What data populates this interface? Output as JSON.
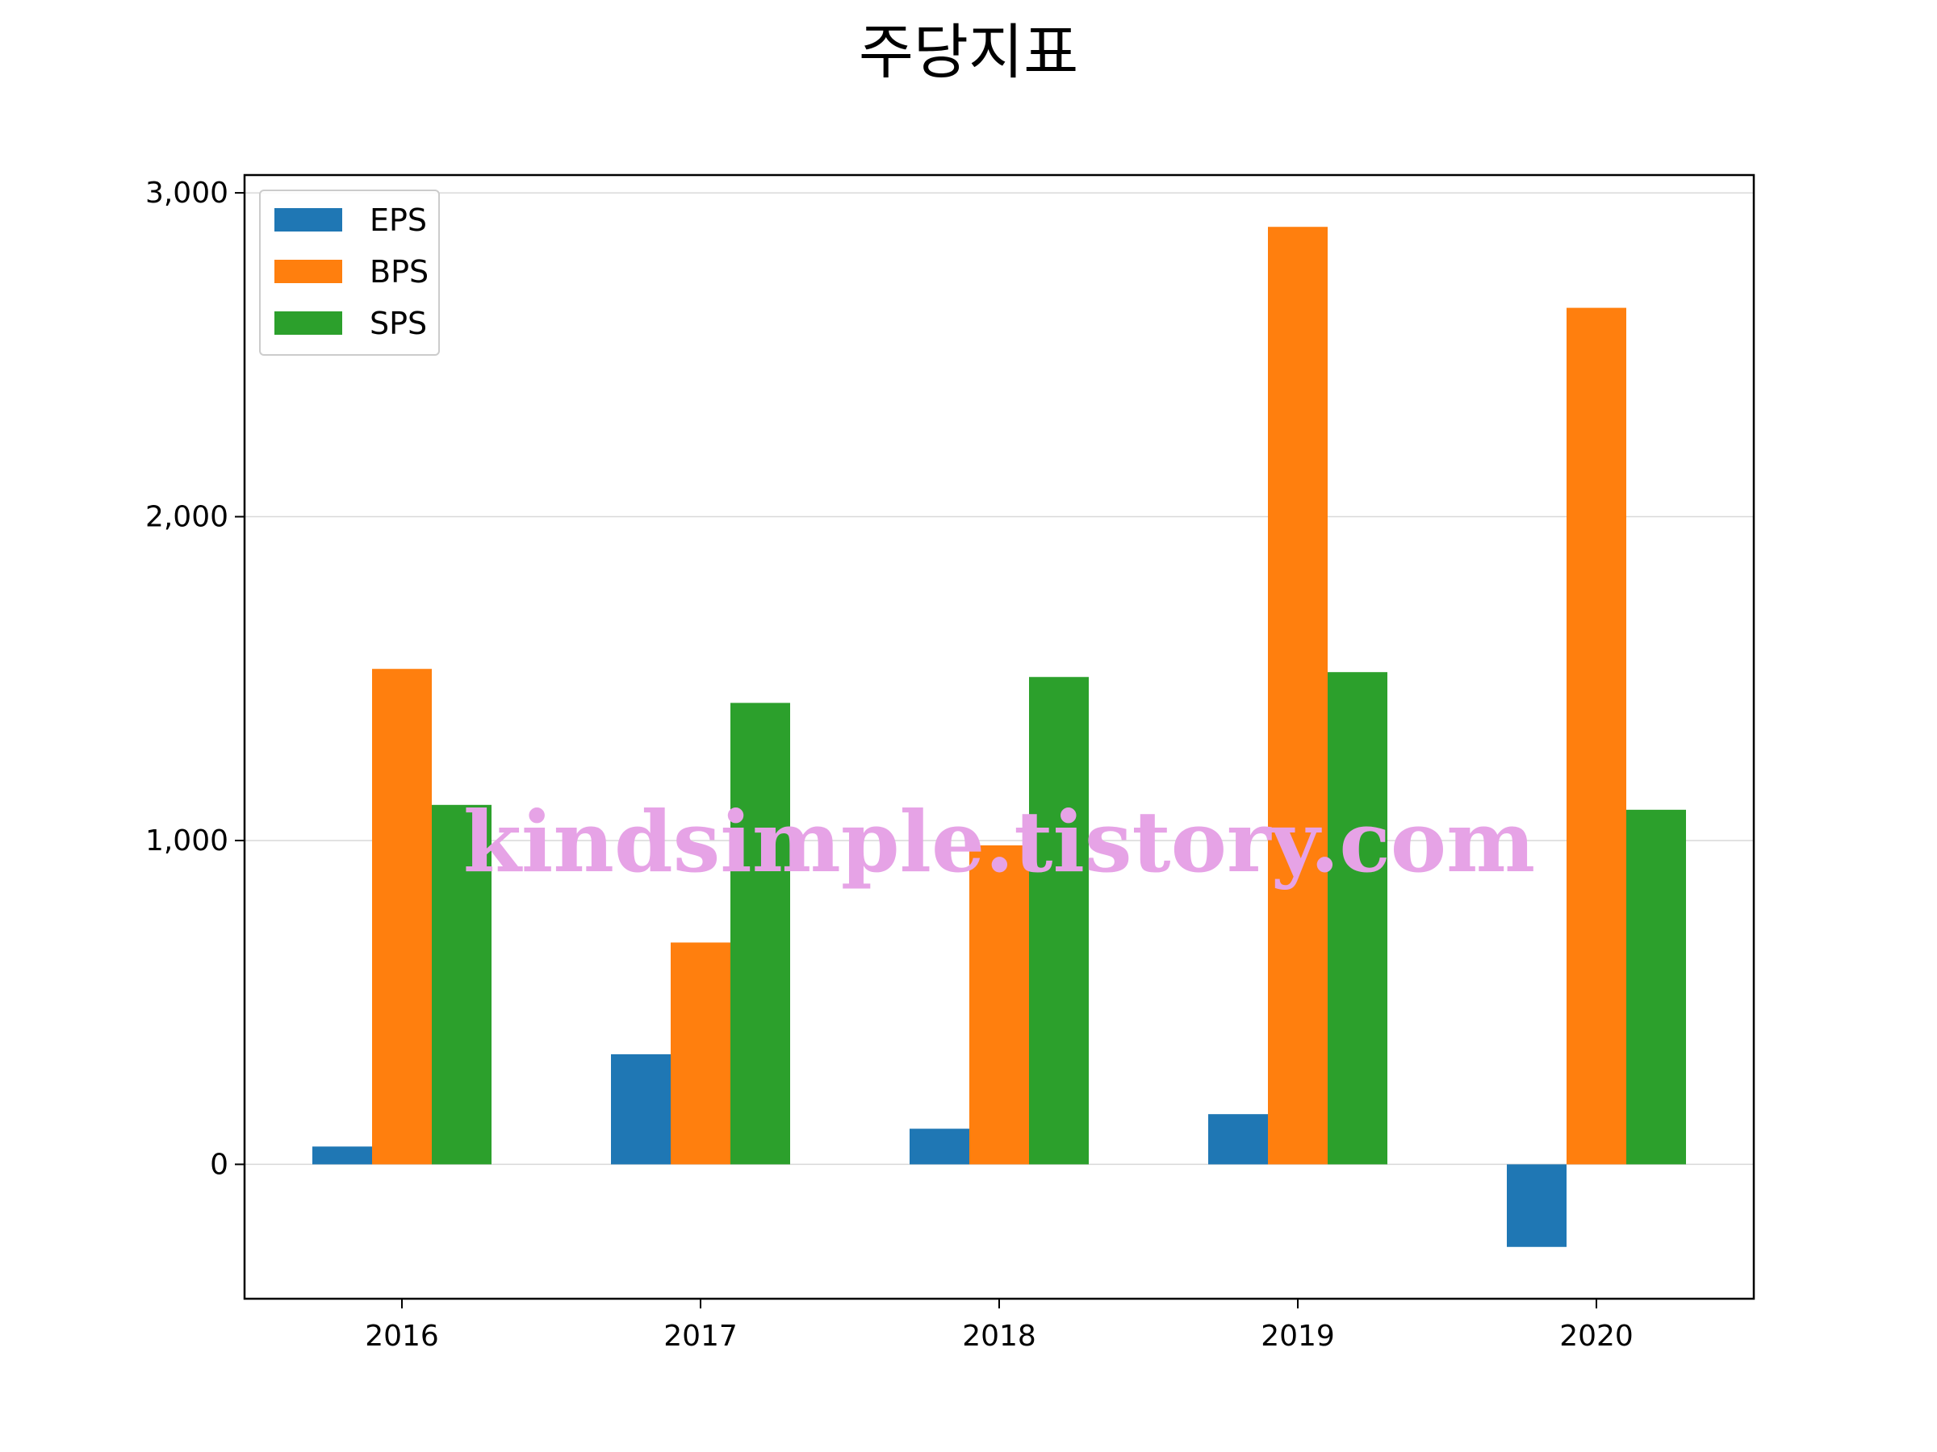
{
  "colors": {
    "EPS": "#1f77b4",
    "BPS": "#ff7f0e",
    "SPS": "#2ca02c",
    "grid": "#d9d9d9",
    "watermark": "#e6a3e6"
  },
  "watermark": "kindsimple.tistory.com",
  "chart_data": {
    "type": "bar",
    "title": "주당지표",
    "xlabel": "",
    "ylabel": "",
    "categories": [
      "2016",
      "2017",
      "2018",
      "2019",
      "2020"
    ],
    "series": [
      {
        "name": "EPS",
        "values": [
          55,
          340,
          110,
          155,
          -255
        ]
      },
      {
        "name": "BPS",
        "values": [
          1530,
          685,
          985,
          2895,
          2645
        ]
      },
      {
        "name": "SPS",
        "values": [
          1110,
          1425,
          1505,
          1520,
          1095
        ]
      }
    ],
    "ylim": [
      -415,
      3055
    ],
    "yticks": [
      0,
      1000,
      2000,
      3000
    ],
    "ytick_labels": [
      "0",
      "1,000",
      "2,000",
      "3,000"
    ],
    "grid": "horizontal",
    "legend": "top-left"
  }
}
